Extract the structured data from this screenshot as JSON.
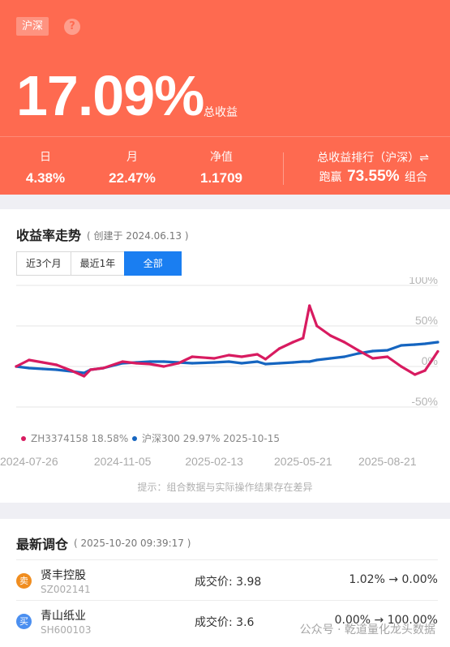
{
  "header": {
    "market_tag": "沪深",
    "help_icon": "question-icon",
    "total_return": "17.09%",
    "total_return_label": "总收益",
    "stats": [
      {
        "label": "日",
        "value": "4.38%"
      },
      {
        "label": "月",
        "value": "22.47%"
      },
      {
        "label": "净值",
        "value": "1.1709"
      }
    ],
    "rank_title": "总收益排行（沪深）⇌",
    "rank_prefix": "跑赢",
    "rank_value": "73.55%",
    "rank_suffix": "组合"
  },
  "trend": {
    "title": "收益率走势",
    "created": "( 创建于 2024.06.13 )",
    "tabs": [
      "近3个月",
      "最近1年",
      "全部"
    ],
    "active_tab": "全部",
    "note": "提示：组合数据与实际操作结果存在差异"
  },
  "chart_data": {
    "type": "line",
    "x": [
      "2024-07-12",
      "2024-07-26",
      "2024-08-10",
      "2024-08-25",
      "2024-09-10",
      "2024-09-24",
      "2024-10-01",
      "2024-10-15",
      "2024-11-05",
      "2024-11-20",
      "2024-12-05",
      "2024-12-20",
      "2025-01-05",
      "2025-01-20",
      "2025-02-13",
      "2025-03-01",
      "2025-03-15",
      "2025-04-01",
      "2025-04-10",
      "2025-04-25",
      "2025-05-10",
      "2025-05-21",
      "2025-05-28",
      "2025-06-05",
      "2025-06-20",
      "2025-07-05",
      "2025-07-20",
      "2025-08-05",
      "2025-08-21",
      "2025-09-05",
      "2025-09-20",
      "2025-10-01",
      "2025-10-15"
    ],
    "series": [
      {
        "name": "ZH3374158",
        "legend": "ZH3374158 18.58%",
        "color": "#d81b60",
        "values": [
          0,
          8,
          5,
          2,
          -5,
          -12,
          -4,
          -2,
          6,
          4,
          3,
          0,
          4,
          12,
          10,
          14,
          12,
          15,
          9,
          22,
          30,
          35,
          75,
          50,
          38,
          30,
          20,
          10,
          12,
          0,
          -10,
          -5,
          18.58
        ]
      },
      {
        "name": "沪深300",
        "legend": "沪深300 29.97% 2025-10-15",
        "color": "#1565c0",
        "values": [
          0,
          -2,
          -3,
          -4,
          -6,
          -8,
          -4,
          -2,
          4,
          5,
          6,
          6,
          5,
          4,
          5,
          6,
          4,
          6,
          3,
          4,
          5,
          6,
          6,
          8,
          10,
          12,
          16,
          19,
          20,
          26,
          27,
          28,
          29.97
        ]
      }
    ],
    "yticks": [
      "100%",
      "50%",
      "0%",
      "-50%"
    ],
    "ylim": [
      -50,
      100
    ],
    "xticks": [
      "2024-07-26",
      "2024-11-05",
      "2025-02-13",
      "2025-05-21",
      "2025-08-21"
    ],
    "grid": true,
    "legend_position": "bottom-left"
  },
  "adjustments": {
    "title": "最新调仓",
    "time": "( 2025-10-20 09:39:17 )",
    "items": [
      {
        "badge": "卖",
        "name": "贤丰控股",
        "code": "SZ002141",
        "price": "成交价: 3.98",
        "ratio": "1.02% → 0.00%"
      },
      {
        "badge": "买",
        "name": "青山纸业",
        "code": "SH600103",
        "price": "成交价: 3.6",
        "ratio": "0.00% → 100.00%"
      }
    ]
  },
  "watermark": "公众号 · 乾道量化龙头数据"
}
